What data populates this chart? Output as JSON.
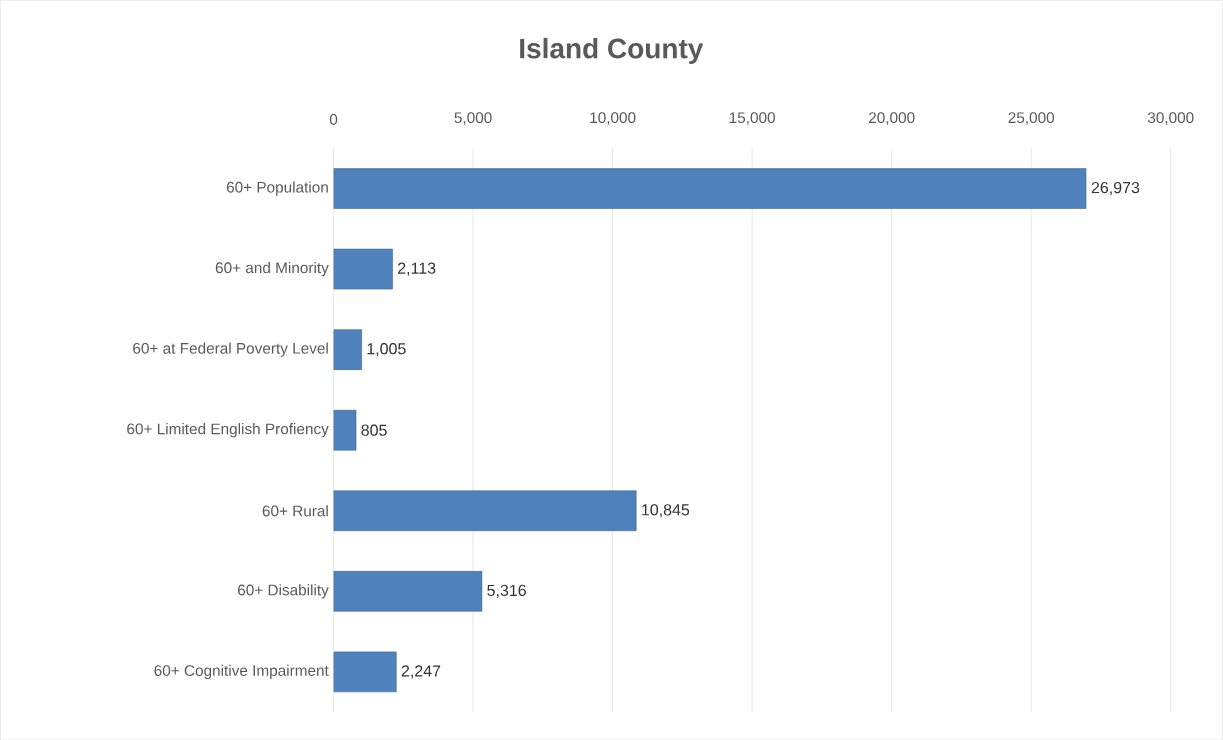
{
  "chart_data": {
    "type": "bar",
    "orientation": "horizontal",
    "title": "Island County",
    "categories": [
      "60+ Population",
      "60+ and Minority",
      "60+ at Federal Poverty Level",
      "60+ Limited English Profiency",
      "60+ Rural",
      "60+ Disability",
      "60+ Cognitive Impairment"
    ],
    "values": [
      26973,
      2113,
      1005,
      805,
      10845,
      5316,
      2247
    ],
    "value_labels": [
      "26,973",
      "2,113",
      "1,005",
      "805",
      "10,845",
      "5,316",
      "2,247"
    ],
    "color": "#4f81bd",
    "xlim": [
      0,
      30000
    ],
    "xticks": [
      0,
      {
        "value": 5000,
        "label": "5,000"
      },
      {
        "value": 10000,
        "label": "10,000"
      },
      {
        "value": 15000,
        "label": "15,000"
      },
      {
        "value": 20000,
        "label": "20,000"
      },
      {
        "value": 25000,
        "label": "25,000"
      },
      {
        "value": 30000,
        "label": "30,000"
      }
    ],
    "grid": "x"
  }
}
